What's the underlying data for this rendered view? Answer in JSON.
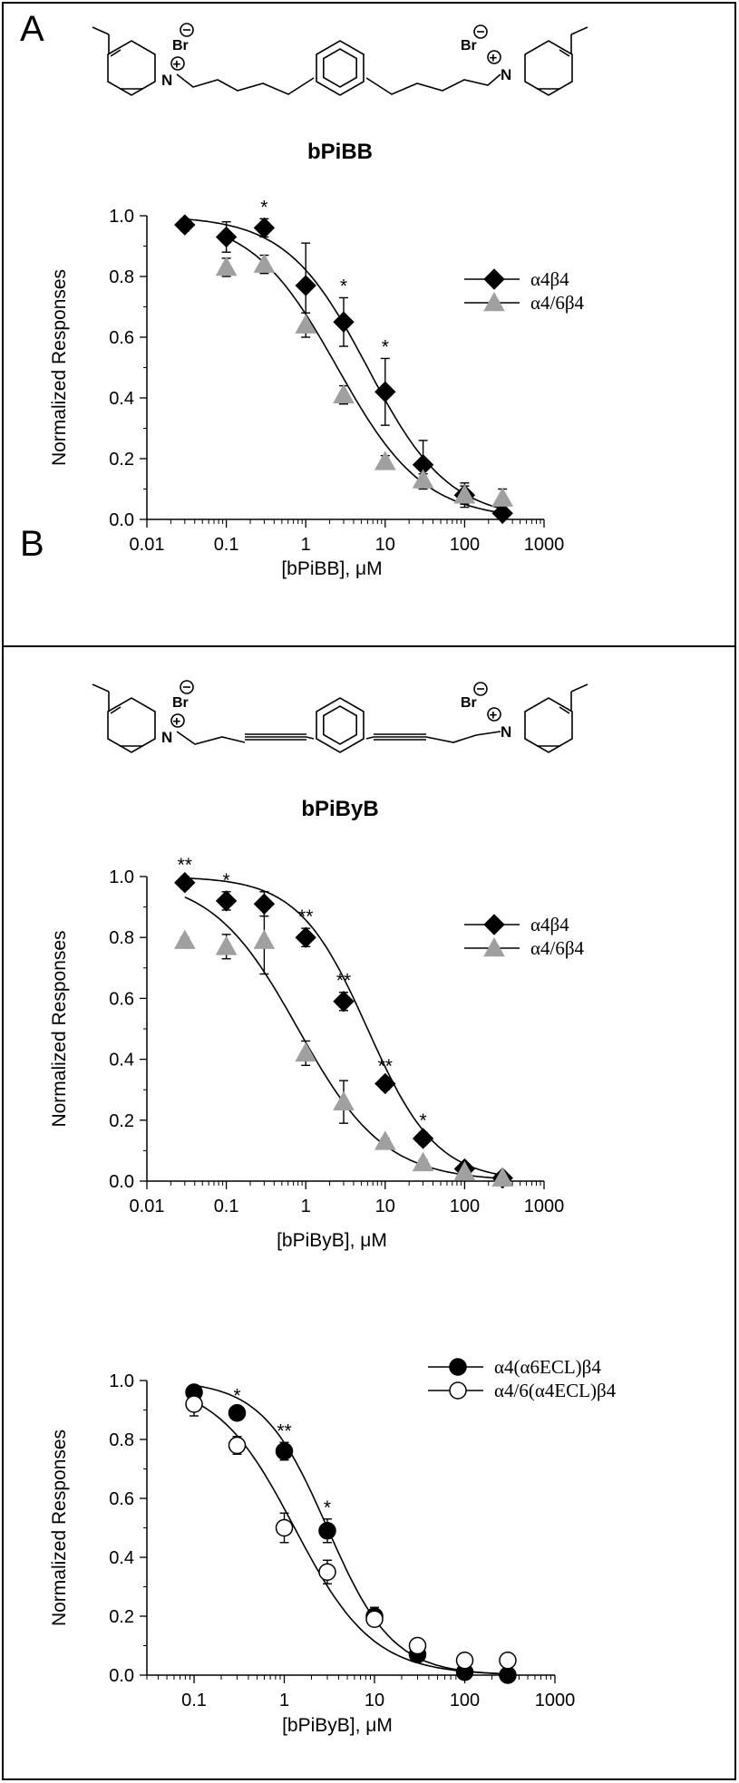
{
  "panels": {
    "a_label": "A",
    "b_label": "B"
  },
  "structures": [
    {
      "compound": "bPiBB",
      "charge_left": "Br",
      "charge_right": "Br",
      "n_left": "N",
      "n_right": "N",
      "linker": "butyl"
    },
    {
      "compound": "bPiByB",
      "charge_left": "Br",
      "charge_right": "Br",
      "n_left": "N",
      "n_right": "N",
      "linker": "butynyl"
    }
  ],
  "colors": {
    "black_series": "#000000",
    "gray_series": "#a0a0a0",
    "open_series_fill": "#ffffff"
  },
  "chart_data": [
    {
      "type": "scatter",
      "xscale": "log",
      "xlim": [
        0.01,
        1000
      ],
      "ylim": [
        0,
        1.0
      ],
      "xticks": [
        "0.01",
        "0.1",
        "1",
        "10",
        "100",
        "1000"
      ],
      "yticks": [
        "0.0",
        "0.2",
        "0.4",
        "0.6",
        "0.8",
        "1.0"
      ],
      "xlabel": "[bPiBB], μM",
      "ylabel": "Normalized Responses",
      "legend": "top-right",
      "series": [
        {
          "name": "α4β4",
          "marker": "diamond",
          "color": "#000000",
          "x": [
            0.03,
            0.1,
            0.3,
            1,
            3,
            10,
            30,
            100,
            300
          ],
          "y": [
            0.97,
            0.93,
            0.96,
            0.77,
            0.65,
            0.42,
            0.18,
            0.08,
            0.02
          ],
          "err": [
            0.02,
            0.05,
            0.03,
            0.14,
            0.08,
            0.11,
            0.08,
            0.03,
            0.01
          ],
          "fit_ic50": 6.0,
          "fit_hill": 0.85
        },
        {
          "name": "α4/6β4",
          "marker": "triangle",
          "color": "#a0a0a0",
          "x": [
            0.1,
            0.3,
            1,
            3,
            10,
            30,
            100,
            300
          ],
          "y": [
            0.83,
            0.84,
            0.64,
            0.41,
            0.19,
            0.13,
            0.08,
            0.07
          ],
          "err": [
            0.03,
            0.03,
            0.04,
            0.03,
            0.02,
            0.02,
            0.04,
            0.03
          ],
          "fit_ic50": 2.5,
          "fit_hill": 0.8
        }
      ],
      "annotations": [
        {
          "x": 0.3,
          "text": "*"
        },
        {
          "x": 3,
          "text": "*"
        },
        {
          "x": 10,
          "text": "*"
        }
      ]
    },
    {
      "type": "scatter",
      "xscale": "log",
      "xlim": [
        0.01,
        1000
      ],
      "ylim": [
        0,
        1.0
      ],
      "xticks": [
        "0.01",
        "0.1",
        "1",
        "10",
        "100",
        "1000"
      ],
      "yticks": [
        "0.0",
        "0.2",
        "0.4",
        "0.6",
        "0.8",
        "1.0"
      ],
      "xlabel": "[bPiByB], μM",
      "ylabel": "Normalized Responses",
      "legend": "top-right",
      "series": [
        {
          "name": "α4β4",
          "marker": "diamond",
          "color": "#000000",
          "x": [
            0.03,
            0.1,
            0.3,
            1,
            3,
            10,
            30,
            100,
            300
          ],
          "y": [
            0.98,
            0.92,
            0.91,
            0.8,
            0.59,
            0.32,
            0.14,
            0.04,
            0.01
          ],
          "err": [
            0.02,
            0.03,
            0.04,
            0.03,
            0.03,
            0.02,
            0.02,
            0.01,
            0.005
          ],
          "fit_ic50": 6.0,
          "fit_hill": 1.0
        },
        {
          "name": "α4/6β4",
          "marker": "triangle",
          "color": "#a0a0a0",
          "x": [
            0.03,
            0.1,
            0.3,
            1,
            3,
            10,
            30,
            100,
            300
          ],
          "y": [
            0.79,
            0.77,
            0.79,
            0.42,
            0.26,
            0.13,
            0.06,
            0.03,
            0.01
          ],
          "err": [
            0.01,
            0.04,
            0.11,
            0.04,
            0.07,
            0.01,
            0.01,
            0.01,
            0.005
          ],
          "fit_ic50": 0.8,
          "fit_hill": 0.8
        }
      ],
      "annotations": [
        {
          "x": 0.03,
          "text": "**"
        },
        {
          "x": 0.1,
          "text": "*"
        },
        {
          "x": 1,
          "text": "**"
        },
        {
          "x": 3,
          "text": "**"
        },
        {
          "x": 10,
          "text": "**"
        },
        {
          "x": 30,
          "text": "*"
        }
      ]
    },
    {
      "type": "scatter",
      "xscale": "log",
      "xlim": [
        0.03,
        1000
      ],
      "ylim": [
        0,
        1.0
      ],
      "xticks": [
        "0.1",
        "1",
        "10",
        "100",
        "1000"
      ],
      "yticks": [
        "0.0",
        "0.2",
        "0.4",
        "0.6",
        "0.8",
        "1.0"
      ],
      "xlabel": "[bPiByB], μM",
      "ylabel": "Normalized Responses",
      "legend": "top-right",
      "series": [
        {
          "name": "α4(α6ECL)β4",
          "marker": "circle-filled",
          "color": "#000000",
          "x": [
            0.1,
            0.3,
            1,
            3,
            10,
            30,
            100,
            300
          ],
          "y": [
            0.96,
            0.89,
            0.76,
            0.49,
            0.2,
            0.07,
            0.01,
            0.0
          ],
          "err": [
            0.02,
            0.02,
            0.03,
            0.04,
            0.03,
            0.01,
            0.01,
            0.005
          ],
          "fit_ic50": 3.0,
          "fit_hill": 1.2
        },
        {
          "name": "α4/6(α4ECL)β4",
          "marker": "circle-open",
          "color": "#000000",
          "x": [
            0.1,
            0.3,
            1,
            3,
            10,
            30,
            100,
            300
          ],
          "y": [
            0.92,
            0.78,
            0.5,
            0.35,
            0.19,
            0.1,
            0.05,
            0.05
          ],
          "err": [
            0.04,
            0.03,
            0.05,
            0.04,
            0.02,
            0.01,
            0.01,
            0.01
          ],
          "fit_ic50": 1.3,
          "fit_hill": 1.0
        }
      ],
      "annotations": [
        {
          "x": 0.3,
          "text": "*"
        },
        {
          "x": 1,
          "text": "**"
        },
        {
          "x": 3,
          "text": "*"
        }
      ]
    }
  ]
}
